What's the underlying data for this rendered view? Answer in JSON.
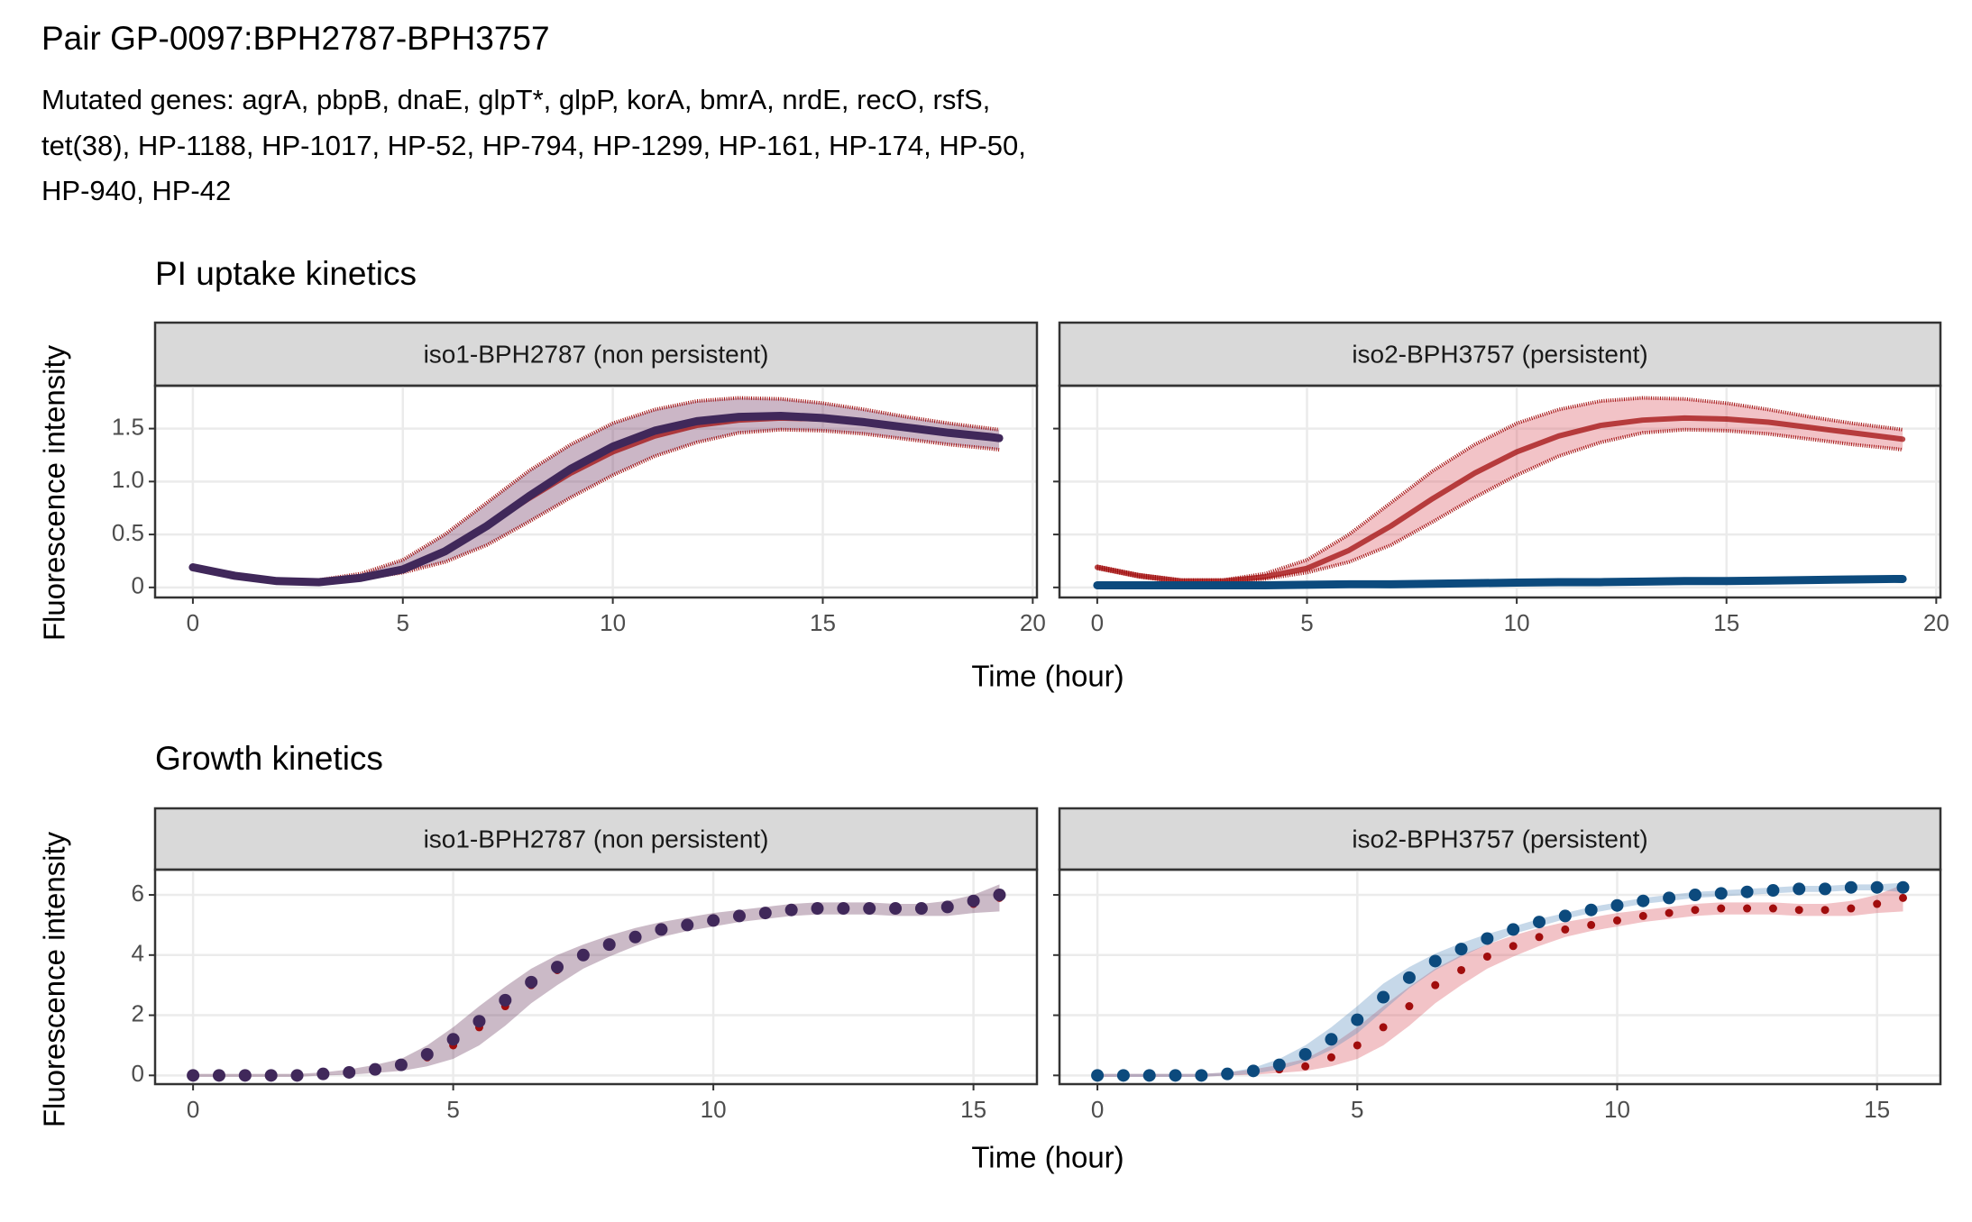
{
  "header": {
    "title": "Pair GP-0097:BPH2787-BPH3757",
    "subtitle_lines": [
      "Mutated genes: agrA, pbpB, dnaE, glpT*, glpP, korA, bmrA, nrdE, recO, rsfS,",
      "tet(38), HP-1188, HP-1017, HP-52, HP-794, HP-1299, HP-161, HP-174, HP-50,",
      "HP-940, HP-42"
    ]
  },
  "chart_data": [
    {
      "type": "line",
      "title": "PI uptake kinetics",
      "xlabel": "Time (hour)",
      "ylabel": "Fluorescence intensity",
      "xlim": [
        -0.9,
        20.1
      ],
      "ylim": [
        -0.095,
        1.905
      ],
      "xticks": [
        0,
        5,
        10,
        15,
        20
      ],
      "yticks": [
        0,
        {
          "value": 0.5,
          "label": "0.5"
        },
        {
          "value": 1,
          "label": "1.0"
        },
        {
          "value": 1.5,
          "label": "1.5"
        }
      ],
      "grid": true,
      "panels": [
        {
          "title": "iso1-BPH2787 (non persistent)",
          "x": [
            0,
            1,
            2,
            3,
            4,
            5,
            6,
            7,
            8,
            9,
            10,
            11,
            12,
            13,
            14,
            15,
            16,
            17,
            18,
            19,
            19.2
          ],
          "series": [
            {
              "color": "#a10d0d",
              "band_color": "#6b2d5c",
              "values": [
                0.19,
                0.11,
                0.06,
                0.06,
                0.1,
                0.18,
                0.35,
                0.58,
                0.84,
                1.08,
                1.28,
                1.43,
                1.53,
                1.58,
                1.6,
                1.59,
                1.56,
                1.51,
                1.46,
                1.41,
                1.4
              ],
              "upper": [
                0.2,
                0.12,
                0.07,
                0.07,
                0.13,
                0.26,
                0.5,
                0.8,
                1.1,
                1.35,
                1.55,
                1.68,
                1.76,
                1.79,
                1.78,
                1.74,
                1.68,
                1.61,
                1.55,
                1.5,
                1.49
              ],
              "lower": [
                0.18,
                0.1,
                0.05,
                0.05,
                0.08,
                0.14,
                0.24,
                0.4,
                0.62,
                0.85,
                1.06,
                1.24,
                1.37,
                1.46,
                1.49,
                1.48,
                1.45,
                1.4,
                1.35,
                1.31,
                1.3
              ]
            },
            {
              "color": "#40285a",
              "values": [
                0.19,
                0.11,
                0.06,
                0.05,
                0.09,
                0.17,
                0.34,
                0.58,
                0.86,
                1.12,
                1.33,
                1.48,
                1.57,
                1.61,
                1.62,
                1.6,
                1.56,
                1.51,
                1.46,
                1.42,
                1.41
              ]
            }
          ]
        },
        {
          "title": "iso2-BPH3757 (persistent)",
          "x": [
            0,
            1,
            2,
            3,
            4,
            5,
            6,
            7,
            8,
            9,
            10,
            11,
            12,
            13,
            14,
            15,
            16,
            17,
            18,
            19,
            19.2
          ],
          "series": [
            {
              "color": "#a10d0d",
              "band_color": "#d9535f",
              "values": [
                0.19,
                0.11,
                0.06,
                0.06,
                0.1,
                0.18,
                0.35,
                0.58,
                0.84,
                1.08,
                1.28,
                1.43,
                1.53,
                1.58,
                1.6,
                1.59,
                1.56,
                1.51,
                1.46,
                1.41,
                1.4
              ],
              "upper": [
                0.2,
                0.12,
                0.07,
                0.07,
                0.13,
                0.26,
                0.5,
                0.8,
                1.1,
                1.35,
                1.55,
                1.68,
                1.76,
                1.79,
                1.78,
                1.74,
                1.68,
                1.61,
                1.55,
                1.5,
                1.49
              ],
              "lower": [
                0.18,
                0.1,
                0.05,
                0.05,
                0.08,
                0.14,
                0.24,
                0.4,
                0.62,
                0.85,
                1.06,
                1.24,
                1.37,
                1.46,
                1.49,
                1.48,
                1.45,
                1.4,
                1.35,
                1.31,
                1.3
              ]
            },
            {
              "color": "#0c4a7d",
              "values": [
                0.02,
                0.02,
                0.02,
                0.02,
                0.02,
                0.025,
                0.03,
                0.03,
                0.035,
                0.04,
                0.045,
                0.05,
                0.05,
                0.055,
                0.06,
                0.06,
                0.065,
                0.07,
                0.075,
                0.08,
                0.08
              ]
            }
          ]
        }
      ]
    },
    {
      "type": "scatter",
      "title": "Growth kinetics",
      "xlabel": "Time (hour)",
      "ylabel": "Fluorescence intensity",
      "xlim": [
        -0.73,
        16.22
      ],
      "ylim": [
        -0.29,
        6.84
      ],
      "xticks": [
        0,
        5,
        10,
        15
      ],
      "yticks": [
        0,
        2,
        4,
        6
      ],
      "grid": true,
      "panels": [
        {
          "title": "iso1-BPH2787 (non persistent)",
          "x": [
            0,
            0.5,
            1,
            1.5,
            2,
            2.5,
            3,
            3.5,
            4,
            4.5,
            5,
            5.5,
            6,
            6.5,
            7,
            7.5,
            8,
            8.5,
            9,
            9.5,
            10,
            10.5,
            11,
            11.5,
            12,
            12.5,
            13,
            13.5,
            14,
            14.5,
            15,
            15.5
          ],
          "series": [
            {
              "color": "#a10d0d",
              "band_color": "#6b3a5e",
              "values": [
                0,
                0,
                0,
                0,
                0,
                0.05,
                0.1,
                0.2,
                0.3,
                0.6,
                1.0,
                1.6,
                2.3,
                3.0,
                3.5,
                3.95,
                4.3,
                4.6,
                4.85,
                5.0,
                5.15,
                5.3,
                5.4,
                5.5,
                5.55,
                5.55,
                5.55,
                5.5,
                5.5,
                5.55,
                5.7,
                5.9
              ],
              "upper": [
                0.05,
                0.05,
                0.05,
                0.05,
                0.05,
                0.1,
                0.2,
                0.35,
                0.55,
                1.0,
                1.6,
                2.3,
                2.95,
                3.55,
                4.0,
                4.35,
                4.65,
                4.9,
                5.1,
                5.25,
                5.4,
                5.5,
                5.6,
                5.7,
                5.75,
                5.75,
                5.75,
                5.7,
                5.7,
                5.8,
                6.0,
                6.35
              ],
              "lower": [
                -0.05,
                -0.05,
                -0.05,
                -0.05,
                -0.05,
                0,
                0.02,
                0.08,
                0.15,
                0.3,
                0.55,
                1.0,
                1.65,
                2.4,
                3.0,
                3.55,
                3.95,
                4.3,
                4.6,
                4.8,
                4.95,
                5.1,
                5.2,
                5.3,
                5.35,
                5.35,
                5.35,
                5.3,
                5.3,
                5.3,
                5.4,
                5.45
              ]
            },
            {
              "color": "#40285a",
              "values": [
                0,
                0,
                0,
                0,
                0,
                0.05,
                0.1,
                0.2,
                0.35,
                0.7,
                1.2,
                1.8,
                2.5,
                3.1,
                3.6,
                4.0,
                4.35,
                4.6,
                4.85,
                5.0,
                5.15,
                5.3,
                5.4,
                5.5,
                5.55,
                5.55,
                5.55,
                5.55,
                5.55,
                5.6,
                5.8,
                6.0
              ]
            }
          ]
        },
        {
          "title": "iso2-BPH3757 (persistent)",
          "x": [
            0,
            0.5,
            1,
            1.5,
            2,
            2.5,
            3,
            3.5,
            4,
            4.5,
            5,
            5.5,
            6,
            6.5,
            7,
            7.5,
            8,
            8.5,
            9,
            9.5,
            10,
            10.5,
            11,
            11.5,
            12,
            12.5,
            13,
            13.5,
            14,
            14.5,
            15,
            15.5
          ],
          "series": [
            {
              "color": "#a10d0d",
              "band_color": "#d9535f",
              "values": [
                0,
                0,
                0,
                0,
                0,
                0.05,
                0.1,
                0.2,
                0.3,
                0.6,
                1.0,
                1.6,
                2.3,
                3.0,
                3.5,
                3.95,
                4.3,
                4.6,
                4.85,
                5.0,
                5.15,
                5.3,
                5.4,
                5.5,
                5.55,
                5.55,
                5.55,
                5.5,
                5.5,
                5.55,
                5.7,
                5.9
              ],
              "upper": [
                0.05,
                0.05,
                0.05,
                0.05,
                0.05,
                0.1,
                0.2,
                0.35,
                0.55,
                1.0,
                1.6,
                2.3,
                2.95,
                3.55,
                4.0,
                4.35,
                4.65,
                4.9,
                5.1,
                5.25,
                5.4,
                5.5,
                5.6,
                5.7,
                5.75,
                5.75,
                5.75,
                5.7,
                5.7,
                5.8,
                6.0,
                6.35
              ],
              "lower": [
                -0.05,
                -0.05,
                -0.05,
                -0.05,
                -0.05,
                0,
                0.02,
                0.08,
                0.15,
                0.3,
                0.55,
                1.0,
                1.65,
                2.4,
                3.0,
                3.55,
                3.95,
                4.3,
                4.6,
                4.8,
                4.95,
                5.1,
                5.2,
                5.3,
                5.35,
                5.35,
                5.35,
                5.3,
                5.3,
                5.3,
                5.4,
                5.45
              ]
            },
            {
              "color": "#0c4a7d",
              "band_color": "#5b8fc0",
              "values": [
                0,
                0,
                0,
                0,
                0,
                0.05,
                0.15,
                0.35,
                0.7,
                1.2,
                1.85,
                2.6,
                3.25,
                3.8,
                4.2,
                4.55,
                4.85,
                5.1,
                5.3,
                5.5,
                5.65,
                5.8,
                5.9,
                6.0,
                6.05,
                6.1,
                6.15,
                6.2,
                6.2,
                6.25,
                6.25,
                6.25
              ],
              "upper": [
                0.05,
                0.05,
                0.05,
                0.05,
                0.05,
                0.1,
                0.25,
                0.55,
                1.0,
                1.6,
                2.3,
                3.05,
                3.6,
                4.05,
                4.4,
                4.7,
                4.95,
                5.2,
                5.4,
                5.6,
                5.75,
                5.9,
                6.0,
                6.1,
                6.15,
                6.2,
                6.25,
                6.3,
                6.3,
                6.35,
                6.35,
                6.4
              ],
              "lower": [
                -0.05,
                -0.05,
                -0.05,
                -0.05,
                -0.05,
                0,
                0.05,
                0.2,
                0.45,
                0.85,
                1.4,
                2.15,
                2.9,
                3.5,
                3.95,
                4.35,
                4.7,
                4.95,
                5.2,
                5.4,
                5.55,
                5.7,
                5.8,
                5.9,
                5.95,
                6.0,
                6.05,
                6.1,
                6.1,
                6.15,
                6.15,
                6.1
              ]
            }
          ]
        }
      ]
    }
  ]
}
